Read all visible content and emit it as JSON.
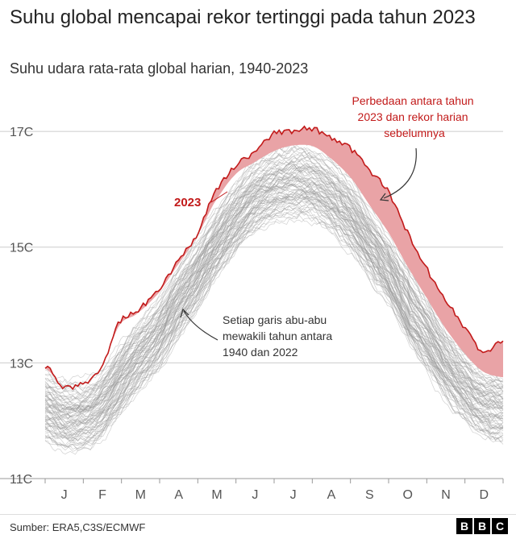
{
  "title": "Suhu global mencapai rekor tertinggi pada tahun 2023",
  "subtitle": "Suhu udara rata-rata global harian, 1940-2023",
  "source": "Sumber: ERA5,C3S/ECMWF",
  "logo": [
    "B",
    "B",
    "C"
  ],
  "colors": {
    "highlight": "#c21a1a",
    "gap_fill": "#e9a3a6",
    "history": "#9a9a9a",
    "grid": "#cccccc"
  },
  "annotations": {
    "gap_note": [
      "Perbedaan antara tahun",
      "2023 dan rekor harian",
      "sebelumnya"
    ],
    "gray_note": [
      "Setiap garis abu-abu",
      "mewakili tahun antara",
      "1940 dan 2022"
    ],
    "year_label": "2023"
  },
  "chart_data": {
    "type": "line",
    "title": "Suhu global mencapai rekor tertinggi pada tahun 2023",
    "subtitle": "Suhu udara rata-rata global harian, 1940-2023",
    "xlabel": "",
    "ylabel": "",
    "x_ticks": [
      "J",
      "F",
      "M",
      "A",
      "M",
      "J",
      "J",
      "A",
      "S",
      "O",
      "N",
      "D"
    ],
    "y_ticks": [
      "11C",
      "13C",
      "15C",
      "17C"
    ],
    "ylim": [
      11,
      17.6
    ],
    "grid": true,
    "series": [
      {
        "name": "2023",
        "x": [
          1,
          15,
          32,
          46,
          60,
          74,
          91,
          105,
          121,
          135,
          152,
          166,
          182,
          196,
          213,
          227,
          244,
          258,
          274,
          288,
          305,
          319,
          335,
          349,
          365
        ],
        "values": [
          12.95,
          12.6,
          12.65,
          12.95,
          13.7,
          13.9,
          14.25,
          14.7,
          15.2,
          15.9,
          16.4,
          16.6,
          16.95,
          17.0,
          17.05,
          16.9,
          16.7,
          16.35,
          15.95,
          15.3,
          14.6,
          14.1,
          13.6,
          13.2,
          13.4
        ]
      },
      {
        "name": "Rekor harian sebelumnya",
        "x": [
          1,
          15,
          32,
          46,
          60,
          74,
          91,
          105,
          121,
          135,
          152,
          166,
          182,
          196,
          213,
          227,
          244,
          258,
          274,
          288,
          305,
          319,
          335,
          349,
          365
        ],
        "values": [
          12.9,
          12.65,
          12.7,
          12.95,
          13.65,
          13.85,
          14.2,
          14.65,
          15.15,
          15.75,
          16.25,
          16.45,
          16.65,
          16.75,
          16.75,
          16.55,
          16.2,
          15.75,
          15.25,
          14.7,
          14.1,
          13.6,
          13.15,
          12.85,
          12.75
        ]
      },
      {
        "name": "1940-2022",
        "x": [
          1,
          15,
          32,
          46,
          60,
          74,
          91,
          105,
          121,
          135,
          152,
          166,
          182,
          196,
          213,
          227,
          244,
          258,
          274,
          288,
          305,
          319,
          335,
          349,
          365
        ],
        "values": [
          12.1,
          11.95,
          11.95,
          12.15,
          12.55,
          12.95,
          13.35,
          13.85,
          14.35,
          14.85,
          15.35,
          15.7,
          15.9,
          16.0,
          15.95,
          15.75,
          15.4,
          14.95,
          14.45,
          13.9,
          13.35,
          12.85,
          12.45,
          12.2,
          12.1
        ]
      }
    ]
  }
}
